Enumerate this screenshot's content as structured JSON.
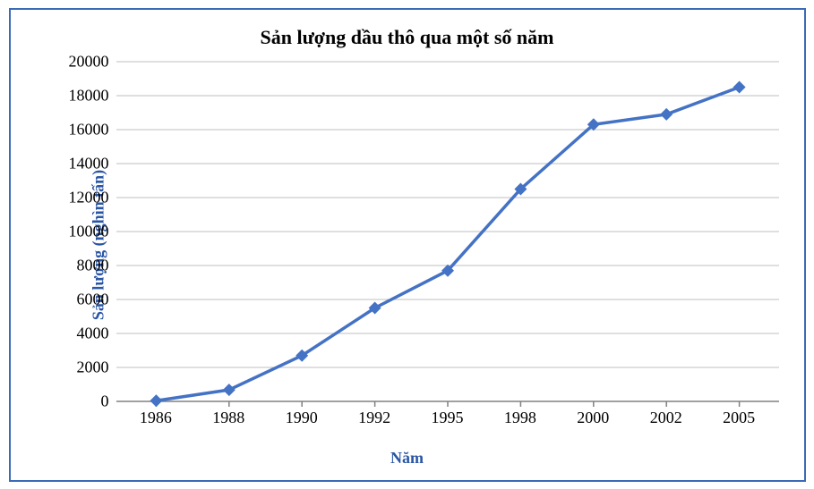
{
  "chart": {
    "type": "line",
    "title": "Sản lượng dầu thô qua một số năm",
    "title_fontsize": 22,
    "xlabel": "Năm",
    "ylabel": "Sản lượng (nghìn tấn)",
    "axis_label_fontsize": 18,
    "axis_label_color": "#2a56a6",
    "tick_fontsize": 18,
    "tick_color": "#000000",
    "background_color": "#ffffff",
    "grid_color": "#bfbfbf",
    "axis_color": "#808080",
    "frame_border_color": "#3b6bb5",
    "x_categories": [
      "1986",
      "1988",
      "1990",
      "1992",
      "1995",
      "1998",
      "2000",
      "2002",
      "2005"
    ],
    "y_values": [
      40,
      680,
      2700,
      5500,
      7700,
      12500,
      16300,
      16900,
      18500
    ],
    "series_color": "#4472c4",
    "line_width": 3.5,
    "marker_style": "diamond",
    "marker_size": 7,
    "ylim": [
      0,
      20000
    ],
    "ytick_step": 2000,
    "grid_y_only": true,
    "x_axis_padding_frac_left": 0.06,
    "x_axis_padding_frac_right": 0.06
  }
}
